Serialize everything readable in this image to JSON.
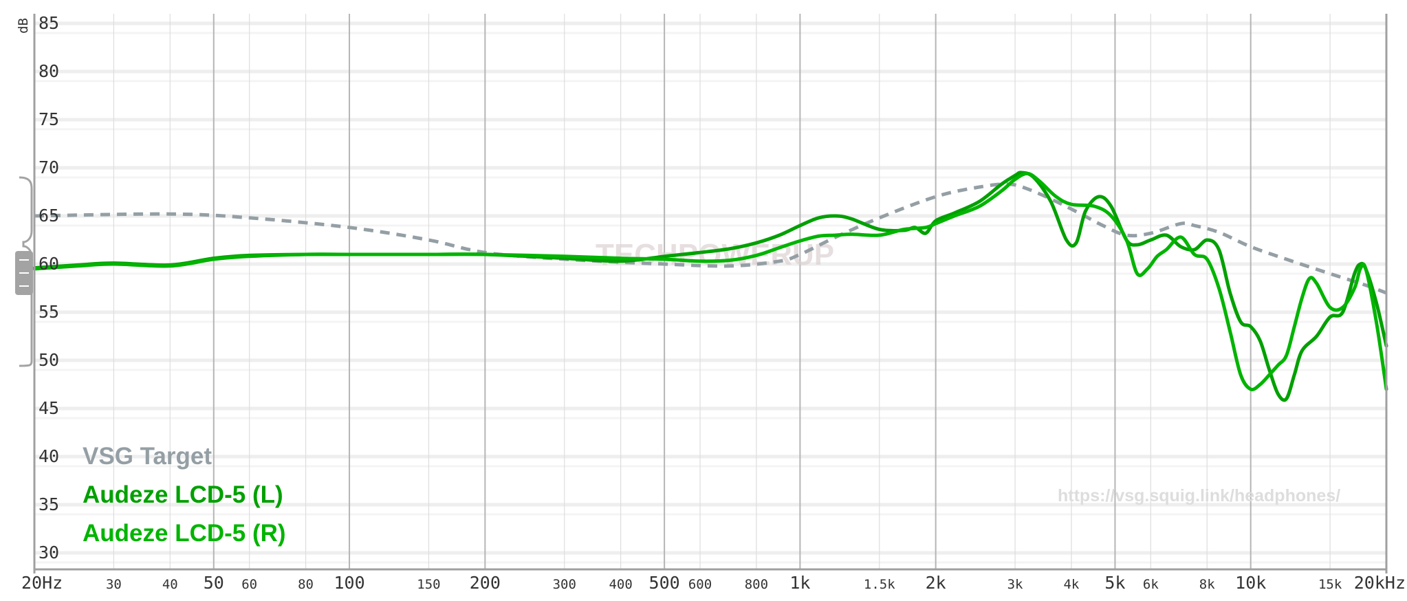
{
  "chart_data": {
    "type": "line",
    "x_scale": "log",
    "xlim": [
      20,
      20000
    ],
    "ylim": [
      28,
      88
    ],
    "y_unit_label": "dB",
    "grid": true,
    "legend_position": "bottom-left",
    "x_ticks": [
      {
        "v": 20,
        "label": "20Hz",
        "major": true
      },
      {
        "v": 30,
        "label": "30",
        "major": false
      },
      {
        "v": 40,
        "label": "40",
        "major": false
      },
      {
        "v": 50,
        "label": "50",
        "major": true
      },
      {
        "v": 60,
        "label": "60",
        "major": false
      },
      {
        "v": 80,
        "label": "80",
        "major": false
      },
      {
        "v": 100,
        "label": "100",
        "major": true
      },
      {
        "v": 150,
        "label": "150",
        "major": false
      },
      {
        "v": 200,
        "label": "200",
        "major": true
      },
      {
        "v": 300,
        "label": "300",
        "major": false
      },
      {
        "v": 400,
        "label": "400",
        "major": false
      },
      {
        "v": 500,
        "label": "500",
        "major": true
      },
      {
        "v": 600,
        "label": "600",
        "major": false
      },
      {
        "v": 800,
        "label": "800",
        "major": false
      },
      {
        "v": 1000,
        "label": "1k",
        "major": true
      },
      {
        "v": 1500,
        "label": "1.5k",
        "major": false
      },
      {
        "v": 2000,
        "label": "2k",
        "major": true
      },
      {
        "v": 3000,
        "label": "3k",
        "major": false
      },
      {
        "v": 4000,
        "label": "4k",
        "major": false
      },
      {
        "v": 5000,
        "label": "5k",
        "major": true
      },
      {
        "v": 6000,
        "label": "6k",
        "major": false
      },
      {
        "v": 8000,
        "label": "8k",
        "major": false
      },
      {
        "v": 10000,
        "label": "10k",
        "major": true
      },
      {
        "v": 15000,
        "label": "15k",
        "major": false
      },
      {
        "v": 20000,
        "label": "20kHz",
        "major": true
      }
    ],
    "y_ticks": [
      30,
      35,
      40,
      45,
      50,
      55,
      60,
      65,
      70,
      75,
      80,
      85
    ],
    "series": [
      {
        "name": "VSG Target",
        "color": "#949fa5",
        "dashed": true,
        "points": [
          [
            20,
            65.0
          ],
          [
            40,
            65.2
          ],
          [
            60,
            64.8
          ],
          [
            100,
            63.8
          ],
          [
            150,
            62.5
          ],
          [
            200,
            61.2
          ],
          [
            300,
            60.5
          ],
          [
            500,
            60.0
          ],
          [
            700,
            59.8
          ],
          [
            900,
            60.3
          ],
          [
            1000,
            61.0
          ],
          [
            1200,
            62.8
          ],
          [
            1500,
            64.8
          ],
          [
            2000,
            67.0
          ],
          [
            2500,
            68.0
          ],
          [
            2900,
            68.3
          ],
          [
            3200,
            67.8
          ],
          [
            3700,
            66.5
          ],
          [
            4200,
            65.2
          ],
          [
            4700,
            64.0
          ],
          [
            5300,
            63.0
          ],
          [
            6000,
            63.2
          ],
          [
            7000,
            64.2
          ],
          [
            7500,
            64.0
          ],
          [
            8500,
            63.3
          ],
          [
            10000,
            61.8
          ],
          [
            12000,
            60.5
          ],
          [
            15000,
            59.0
          ],
          [
            18000,
            57.8
          ],
          [
            20000,
            57.0
          ]
        ]
      },
      {
        "name": "Audeze LCD-5 (L)",
        "color": "#00a000",
        "dashed": false,
        "points": [
          [
            20,
            59.6
          ],
          [
            25,
            59.9
          ],
          [
            30,
            60.1
          ],
          [
            40,
            59.9
          ],
          [
            50,
            60.6
          ],
          [
            60,
            60.9
          ],
          [
            80,
            61.0
          ],
          [
            100,
            61.0
          ],
          [
            150,
            61.0
          ],
          [
            200,
            61.0
          ],
          [
            300,
            60.6
          ],
          [
            400,
            60.3
          ],
          [
            500,
            60.8
          ],
          [
            600,
            61.2
          ],
          [
            700,
            61.6
          ],
          [
            800,
            62.2
          ],
          [
            900,
            63.0
          ],
          [
            1000,
            64.0
          ],
          [
            1100,
            64.8
          ],
          [
            1200,
            65.0
          ],
          [
            1300,
            64.7
          ],
          [
            1500,
            63.6
          ],
          [
            1700,
            63.5
          ],
          [
            1800,
            63.8
          ],
          [
            1900,
            63.2
          ],
          [
            2000,
            64.5
          ],
          [
            2200,
            65.3
          ],
          [
            2500,
            66.5
          ],
          [
            2800,
            68.3
          ],
          [
            3000,
            69.2
          ],
          [
            3100,
            69.5
          ],
          [
            3300,
            69.0
          ],
          [
            3600,
            66.5
          ],
          [
            3900,
            62.5
          ],
          [
            4100,
            62.2
          ],
          [
            4300,
            65.5
          ],
          [
            4600,
            67.0
          ],
          [
            4900,
            66.0
          ],
          [
            5300,
            62.5
          ],
          [
            5600,
            62.0
          ],
          [
            6000,
            62.5
          ],
          [
            6500,
            63.0
          ],
          [
            7000,
            61.8
          ],
          [
            7500,
            61.5
          ],
          [
            8000,
            62.5
          ],
          [
            8500,
            61.5
          ],
          [
            9000,
            57.0
          ],
          [
            9500,
            54.0
          ],
          [
            10000,
            53.5
          ],
          [
            10500,
            52.0
          ],
          [
            11000,
            49.0
          ],
          [
            11500,
            46.5
          ],
          [
            12000,
            46.0
          ],
          [
            12500,
            48.5
          ],
          [
            13000,
            51.0
          ],
          [
            14000,
            52.5
          ],
          [
            15000,
            54.5
          ],
          [
            16000,
            55.0
          ],
          [
            17000,
            59.0
          ],
          [
            17500,
            60.0
          ],
          [
            18000,
            59.5
          ],
          [
            19000,
            56.0
          ],
          [
            20000,
            51.5
          ]
        ]
      },
      {
        "name": "Audeze LCD-5 (R)",
        "color": "#00b400",
        "dashed": false,
        "points": [
          [
            20,
            59.5
          ],
          [
            25,
            59.8
          ],
          [
            30,
            60.0
          ],
          [
            40,
            59.8
          ],
          [
            50,
            60.5
          ],
          [
            60,
            60.8
          ],
          [
            80,
            61.0
          ],
          [
            100,
            61.0
          ],
          [
            150,
            61.0
          ],
          [
            200,
            61.0
          ],
          [
            300,
            60.8
          ],
          [
            400,
            60.6
          ],
          [
            500,
            60.5
          ],
          [
            600,
            60.3
          ],
          [
            700,
            60.4
          ],
          [
            800,
            60.9
          ],
          [
            900,
            61.7
          ],
          [
            1000,
            62.4
          ],
          [
            1100,
            62.9
          ],
          [
            1200,
            63.0
          ],
          [
            1300,
            63.1
          ],
          [
            1500,
            63.0
          ],
          [
            1700,
            63.6
          ],
          [
            1900,
            63.8
          ],
          [
            2000,
            64.2
          ],
          [
            2200,
            65.0
          ],
          [
            2500,
            66.0
          ],
          [
            2800,
            67.6
          ],
          [
            3000,
            68.8
          ],
          [
            3200,
            69.4
          ],
          [
            3400,
            68.6
          ],
          [
            3700,
            67.0
          ],
          [
            4000,
            66.2
          ],
          [
            4500,
            66.0
          ],
          [
            4900,
            65.0
          ],
          [
            5300,
            62.5
          ],
          [
            5600,
            59.0
          ],
          [
            5900,
            59.5
          ],
          [
            6200,
            60.8
          ],
          [
            6500,
            61.5
          ],
          [
            7000,
            62.8
          ],
          [
            7500,
            61.0
          ],
          [
            8000,
            60.5
          ],
          [
            8500,
            57.5
          ],
          [
            9000,
            53.0
          ],
          [
            9500,
            48.5
          ],
          [
            10000,
            47.0
          ],
          [
            10500,
            47.5
          ],
          [
            11000,
            48.5
          ],
          [
            11500,
            49.5
          ],
          [
            12000,
            50.5
          ],
          [
            12500,
            53.5
          ],
          [
            13000,
            56.5
          ],
          [
            13500,
            58.5
          ],
          [
            14000,
            58.0
          ],
          [
            15000,
            55.5
          ],
          [
            16000,
            55.5
          ],
          [
            17000,
            57.5
          ],
          [
            17500,
            59.5
          ],
          [
            18000,
            59.5
          ],
          [
            19000,
            54.0
          ],
          [
            20000,
            47.0
          ]
        ]
      }
    ],
    "legend": [
      "VSG Target",
      "Audeze LCD-5 (L)",
      "Audeze LCD-5 (R)"
    ],
    "annotations": {
      "watermark": "TECHPOWERUP",
      "url": "https://vsg.squig.link/headphones/"
    }
  }
}
